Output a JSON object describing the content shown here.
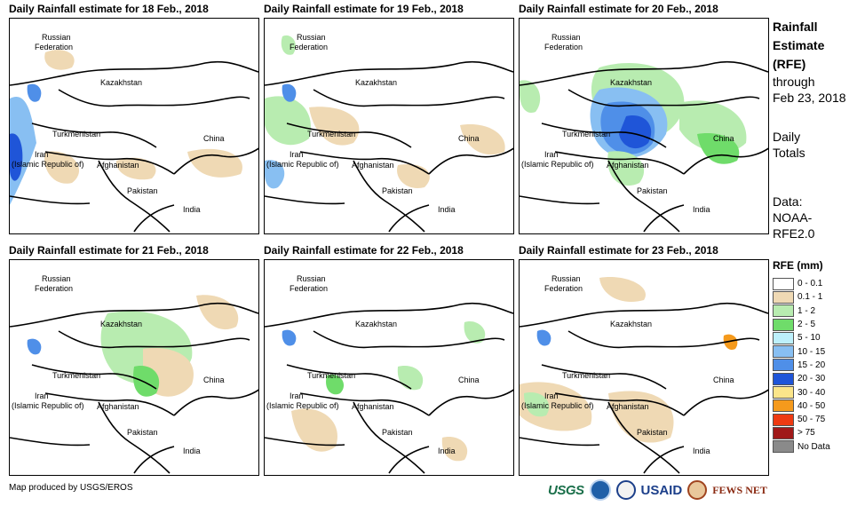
{
  "panels": [
    {
      "title": "Daily Rainfall estimate for 18 Feb., 2018",
      "rain_shading": "light west, heavy southwest"
    },
    {
      "title": "Daily Rainfall estimate for 19 Feb., 2018",
      "rain_shading": "moderate west"
    },
    {
      "title": "Daily Rainfall estimate for 20 Feb., 2018",
      "rain_shading": "heavy central"
    },
    {
      "title": "Daily Rainfall estimate for 21 Feb., 2018",
      "rain_shading": "moderate central-east"
    },
    {
      "title": "Daily Rainfall estimate for 22 Feb., 2018",
      "rain_shading": "light scattered"
    },
    {
      "title": "Daily Rainfall estimate for 23 Feb., 2018",
      "rain_shading": "light south"
    }
  ],
  "country_labels": {
    "russia": "Russian Federation",
    "russia_line1": "Russian",
    "russia_line2": "Federation",
    "kazakhstan": "Kazakhstan",
    "turkmenistan": "Turkmenistan",
    "iran_line1": "Iran",
    "iran_line2": "(Islamic Republic of)",
    "afghanistan": "Afghanistan",
    "pakistan": "Pakistan",
    "china": "China",
    "india": "India"
  },
  "sidebar": {
    "title_line1": "Rainfall",
    "title_line2": "Estimate",
    "title_line3": "(RFE)",
    "through_line1": "through",
    "through_line2": "Feb 23, 2018",
    "totals_line1": "Daily",
    "totals_line2": "Totals",
    "data_line1": "Data:",
    "data_line2": "NOAA-",
    "data_line3": "RFE2.0"
  },
  "legend": {
    "title": "RFE (mm)",
    "items": [
      {
        "label": "0 - 0.1",
        "color": "#ffffff"
      },
      {
        "label": "0.1 - 1",
        "color": "#efd9b4"
      },
      {
        "label": "1 - 2",
        "color": "#b8ecb0"
      },
      {
        "label": "2 - 5",
        "color": "#6fdc6a"
      },
      {
        "label": "5 - 10",
        "color": "#bdf0fb"
      },
      {
        "label": "10 - 15",
        "color": "#88bff2"
      },
      {
        "label": "15 - 20",
        "color": "#4f8fe8"
      },
      {
        "label": "20 - 30",
        "color": "#1f55d8"
      },
      {
        "label": "30 - 40",
        "color": "#fbe58a"
      },
      {
        "label": "40 - 50",
        "color": "#f59a1c"
      },
      {
        "label": "50 - 75",
        "color": "#ee3a12"
      },
      {
        "label": "> 75",
        "color": "#a01818"
      },
      {
        "label": "No Data",
        "color": "#8a8a8a"
      }
    ]
  },
  "credit": "Map produced by USGS/EROS",
  "logos": {
    "usgs": "USGS",
    "usaid": "USAID",
    "fews": "FEWS NET"
  }
}
